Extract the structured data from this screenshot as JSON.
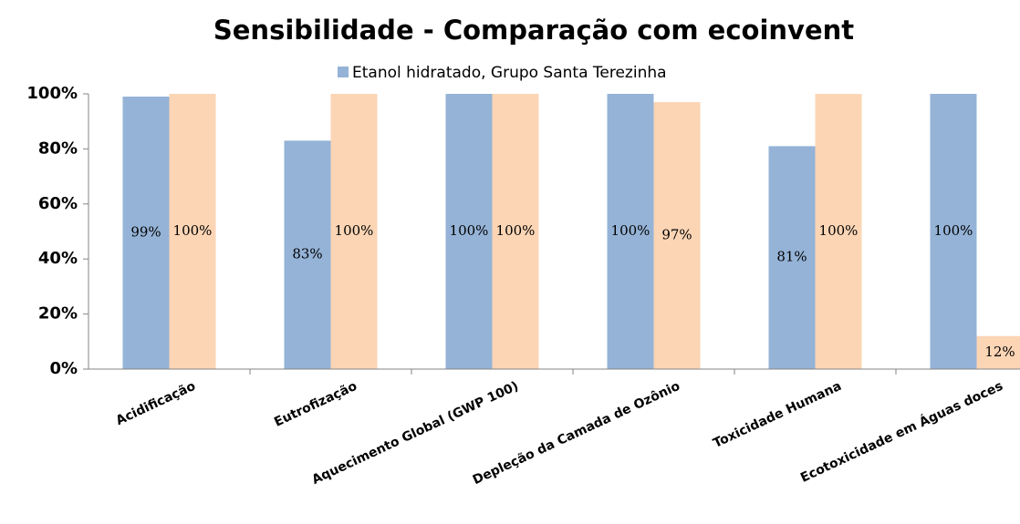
{
  "chart_data": {
    "type": "bar",
    "title": "Sensibilidade - Comparação com ecoinvent",
    "categories": [
      "Acidificação",
      "Eutrofização",
      "Aquecimento Global (GWP 100)",
      "Depleção da Camada de Ozônio",
      "Toxicidade Humana",
      "Ecotoxicidade em Águas doces"
    ],
    "series": [
      {
        "name": "Etanol hidratado, Grupo Santa Terezinha",
        "color": "#95b3d7",
        "values": [
          99,
          83,
          100,
          100,
          81,
          100
        ],
        "value_labels": [
          "99%",
          "83%",
          "100%",
          "100%",
          "81%",
          "100%"
        ]
      },
      {
        "color": "#fcd5b5",
        "values": [
          100,
          100,
          100,
          97,
          100,
          12
        ],
        "value_labels": [
          "100%",
          "100%",
          "100%",
          "97%",
          "100%",
          "12%"
        ]
      }
    ],
    "ylim": [
      0,
      100
    ],
    "yticks": [
      {
        "value": 0,
        "label": "0%"
      },
      {
        "value": 20,
        "label": "20%"
      },
      {
        "value": 40,
        "label": "40%"
      },
      {
        "value": 60,
        "label": "60%"
      },
      {
        "value": 80,
        "label": "80%"
      },
      {
        "value": 100,
        "label": "100%"
      }
    ],
    "legend": "top"
  }
}
